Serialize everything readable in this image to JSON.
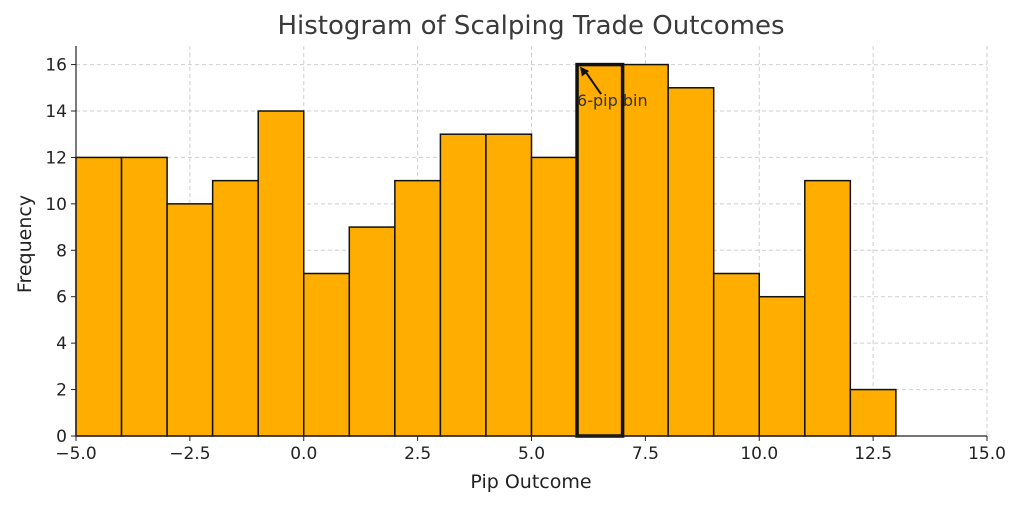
{
  "chart_data": {
    "type": "histogram",
    "title": "Histogram of Scalping Trade Outcomes",
    "xlabel": "Pip Outcome",
    "ylabel": "Frequency",
    "xlim": [
      -5,
      15
    ],
    "ylim": [
      0,
      16.8
    ],
    "grid": true,
    "bar_color": "#FFAE00",
    "edge_color": "#111111",
    "bins": [
      {
        "start": -5,
        "end": -4,
        "count": 12
      },
      {
        "start": -4,
        "end": -3,
        "count": 12
      },
      {
        "start": -3,
        "end": -2,
        "count": 10
      },
      {
        "start": -2,
        "end": -1,
        "count": 11
      },
      {
        "start": -1,
        "end": 0,
        "count": 14
      },
      {
        "start": 0,
        "end": 1,
        "count": 7
      },
      {
        "start": 1,
        "end": 2,
        "count": 9
      },
      {
        "start": 2,
        "end": 3,
        "count": 11
      },
      {
        "start": 3,
        "end": 4,
        "count": 13
      },
      {
        "start": 4,
        "end": 5,
        "count": 13
      },
      {
        "start": 5,
        "end": 6,
        "count": 12
      },
      {
        "start": 6,
        "end": 7,
        "count": 16
      },
      {
        "start": 7,
        "end": 8,
        "count": 16
      },
      {
        "start": 8,
        "end": 9,
        "count": 15
      },
      {
        "start": 9,
        "end": 10,
        "count": 7
      },
      {
        "start": 10,
        "end": 11,
        "count": 6
      },
      {
        "start": 11,
        "end": 12,
        "count": 11
      },
      {
        "start": 12,
        "end": 13,
        "count": 2
      }
    ],
    "highlight_bin": {
      "start": 6,
      "end": 7
    },
    "x_ticks": [
      -5,
      -2.5,
      0,
      2.5,
      5,
      7.5,
      10,
      12.5,
      15
    ],
    "x_tick_labels": [
      "−5.0",
      "−2.5",
      "0.0",
      "2.5",
      "5.0",
      "7.5",
      "10.0",
      "12.5",
      "15.0"
    ],
    "y_ticks": [
      0,
      2,
      4,
      6,
      8,
      10,
      12,
      14,
      16
    ],
    "y_tick_labels": [
      "0",
      "2",
      "4",
      "6",
      "8",
      "10",
      "12",
      "14",
      "16"
    ],
    "annotation": {
      "text": "6-pip bin",
      "point": [
        6,
        16
      ],
      "text_at": [
        6,
        14.6
      ]
    }
  }
}
